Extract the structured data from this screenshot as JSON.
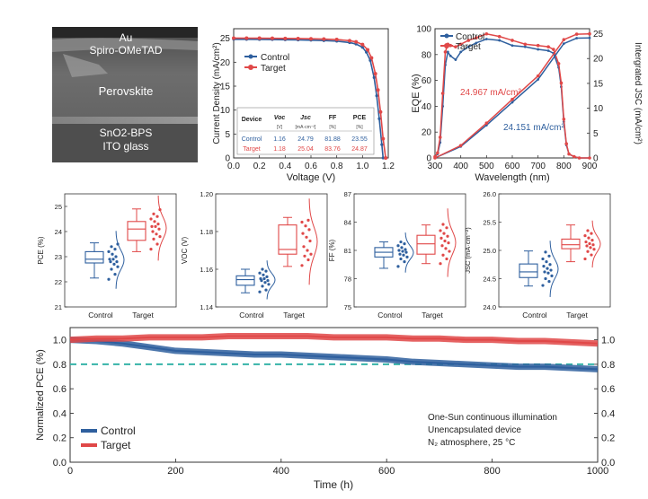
{
  "figure_title": "Perovskite solar cell performance: Control vs Target",
  "colors": {
    "control": "#2e5f9e",
    "target": "#e04848",
    "threshold": "#35b3a8",
    "axis": "#333333",
    "sem_bg": "#3a3a3a"
  },
  "sem_image": {
    "layers": [
      "Au",
      "Spiro-OMeTAD",
      "Perovskite",
      "SnO2-BPS",
      "ITO glass"
    ]
  },
  "chart_data": [
    {
      "id": "jv",
      "type": "line",
      "xlabel": "Voltage (V)",
      "ylabel": "Current Density (mA/cm²)",
      "xlim": [
        0.0,
        1.2
      ],
      "ylim": [
        0,
        27
      ],
      "xticks": [
        "0.0",
        "0.2",
        "0.4",
        "0.6",
        "0.8",
        "1.0",
        "1.2"
      ],
      "yticks": [
        "0",
        "5",
        "10",
        "15",
        "20",
        "25"
      ],
      "legend": [
        "Control",
        "Target"
      ],
      "series": [
        {
          "name": "Control",
          "x": [
            0,
            0.1,
            0.2,
            0.3,
            0.4,
            0.5,
            0.6,
            0.7,
            0.8,
            0.9,
            0.95,
            1.0,
            1.03,
            1.06,
            1.09,
            1.11,
            1.13,
            1.15,
            1.16
          ],
          "y": [
            24.79,
            24.78,
            24.76,
            24.74,
            24.7,
            24.66,
            24.6,
            24.52,
            24.4,
            24.1,
            23.8,
            23.1,
            22.1,
            20.4,
            16.8,
            13.0,
            8.2,
            2.8,
            0
          ]
        },
        {
          "name": "Target",
          "x": [
            0,
            0.1,
            0.2,
            0.3,
            0.4,
            0.5,
            0.6,
            0.7,
            0.8,
            0.9,
            0.95,
            1.0,
            1.04,
            1.07,
            1.1,
            1.12,
            1.14,
            1.16,
            1.18
          ],
          "y": [
            25.04,
            25.03,
            25.02,
            25.0,
            24.97,
            24.94,
            24.9,
            24.84,
            24.74,
            24.5,
            24.25,
            23.7,
            22.6,
            20.9,
            17.6,
            14.2,
            9.6,
            4.0,
            0
          ]
        }
      ],
      "table": {
        "headers": [
          "Device",
          "Voc",
          "Jsc",
          "FF",
          "PCE"
        ],
        "units": [
          "",
          "[V]",
          "[mA·cm⁻²]",
          "[%]",
          "[%]"
        ],
        "rows": [
          [
            "Control",
            "1.16",
            "24.79",
            "81.88",
            "23.55"
          ],
          [
            "Target",
            "1.18",
            "25.04",
            "83.76",
            "24.87"
          ]
        ]
      }
    },
    {
      "id": "eqe",
      "type": "line",
      "xlabel": "Wavelength (nm)",
      "ylabel": "EQE (%)",
      "y2label": "Intergrated JSC (mA/cm²)",
      "xlim": [
        300,
        900
      ],
      "ylim": [
        0,
        100
      ],
      "y2lim": [
        0,
        26
      ],
      "xticks": [
        "300",
        "400",
        "500",
        "600",
        "700",
        "800",
        "900"
      ],
      "yticks": [
        "0",
        "20",
        "40",
        "60",
        "80",
        "100"
      ],
      "y2ticks": [
        "0",
        "5",
        "10",
        "15",
        "20",
        "25"
      ],
      "legend": [
        "Control",
        "Target"
      ],
      "annotations": [
        "24.967 mA/cm²",
        "24.151 mA/cm²"
      ],
      "series": [
        {
          "name": "Control EQE",
          "x": [
            300,
            310,
            320,
            330,
            340,
            350,
            360,
            380,
            400,
            430,
            460,
            500,
            550,
            600,
            650,
            700,
            740,
            760,
            780,
            790,
            800,
            810,
            820,
            840,
            860,
            900
          ],
          "y": [
            1,
            3,
            12,
            40,
            72,
            82,
            79,
            76,
            82,
            86,
            89,
            92,
            91,
            87,
            86,
            84,
            83,
            81,
            70,
            55,
            28,
            10,
            3,
            1,
            0,
            0
          ]
        },
        {
          "name": "Target EQE",
          "x": [
            300,
            310,
            320,
            330,
            340,
            350,
            360,
            380,
            400,
            430,
            460,
            500,
            550,
            600,
            650,
            700,
            740,
            760,
            780,
            790,
            800,
            810,
            820,
            840,
            860,
            900
          ],
          "y": [
            1,
            4,
            16,
            50,
            82,
            88,
            87,
            86,
            88,
            91,
            93,
            96,
            94,
            91,
            88,
            87,
            86,
            84,
            73,
            58,
            30,
            11,
            3,
            1,
            0,
            0
          ]
        },
        {
          "name": "Control Jsc",
          "x": [
            300,
            400,
            500,
            600,
            700,
            800,
            850,
            900
          ],
          "y": [
            0,
            2.3,
            6.6,
            11.2,
            15.8,
            23.0,
            24.1,
            24.15
          ]
        },
        {
          "name": "Target Jsc",
          "x": [
            300,
            400,
            500,
            600,
            700,
            800,
            850,
            900
          ],
          "y": [
            0,
            2.5,
            7.0,
            11.8,
            16.5,
            23.8,
            24.9,
            24.97
          ]
        }
      ]
    },
    {
      "id": "pce_box",
      "type": "box",
      "ylabel": "PCE (%)",
      "ylim": [
        21,
        25.5
      ],
      "yticks": [
        "21",
        "22",
        "23",
        "24",
        "25"
      ],
      "categories": [
        "Control",
        "Target"
      ],
      "series": [
        {
          "name": "Control",
          "whisker_low": 22.15,
          "q1": 22.75,
          "median": 22.9,
          "q3": 23.2,
          "whisker_high": 23.55,
          "points": [
            22.1,
            22.3,
            22.5,
            22.6,
            22.7,
            22.8,
            22.8,
            22.9,
            22.9,
            23.0,
            23.1,
            23.2,
            23.3,
            23.4,
            23.5
          ]
        },
        {
          "name": "Target",
          "whisker_low": 23.2,
          "q1": 23.65,
          "median": 24.1,
          "q3": 24.4,
          "whisker_high": 24.9,
          "points": [
            23.3,
            23.5,
            23.7,
            23.8,
            23.9,
            24.0,
            24.1,
            24.2,
            24.2,
            24.3,
            24.4,
            24.5,
            24.6,
            24.7,
            24.87
          ]
        }
      ]
    },
    {
      "id": "voc_box",
      "type": "box",
      "ylabel": "VOC (V)",
      "ylim": [
        1.14,
        1.2
      ],
      "yticks": [
        "1.14",
        "1.16",
        "1.18",
        "1.20"
      ],
      "categories": [
        "Control",
        "Target"
      ],
      "series": [
        {
          "name": "Control",
          "whisker_low": 1.1475,
          "q1": 1.1515,
          "median": 1.1545,
          "q3": 1.1565,
          "whisker_high": 1.16,
          "points": [
            1.148,
            1.149,
            1.151,
            1.152,
            1.153,
            1.154,
            1.154,
            1.155,
            1.155,
            1.156,
            1.157,
            1.158,
            1.159,
            1.16
          ]
        },
        {
          "name": "Target",
          "whisker_low": 1.1615,
          "q1": 1.168,
          "median": 1.1705,
          "q3": 1.1835,
          "whisker_high": 1.1875,
          "points": [
            1.162,
            1.165,
            1.167,
            1.168,
            1.17,
            1.172,
            1.175,
            1.177,
            1.179,
            1.181,
            1.183,
            1.185,
            1.186
          ]
        }
      ]
    },
    {
      "id": "ff_box",
      "type": "box",
      "ylabel": "FF (%)",
      "ylim": [
        75,
        87
      ],
      "yticks": [
        "75",
        "78",
        "81",
        "84",
        "87"
      ],
      "categories": [
        "Control",
        "Target"
      ],
      "series": [
        {
          "name": "Control",
          "whisker_low": 79.1,
          "q1": 80.3,
          "median": 80.8,
          "q3": 81.3,
          "whisker_high": 81.9,
          "points": [
            79.3,
            79.8,
            80.1,
            80.3,
            80.5,
            80.6,
            80.8,
            80.9,
            81.0,
            81.1,
            81.3,
            81.5,
            81.7,
            81.9
          ]
        },
        {
          "name": "Target",
          "whisker_low": 79.6,
          "q1": 80.6,
          "median": 81.7,
          "q3": 82.6,
          "whisker_high": 83.7,
          "points": [
            79.6,
            80.1,
            80.5,
            80.9,
            81.2,
            81.5,
            81.8,
            82.0,
            82.3,
            82.5,
            82.8,
            83.1,
            83.4,
            83.76
          ]
        }
      ]
    },
    {
      "id": "jsc_box",
      "type": "box",
      "ylabel": "JSC (mA·cm⁻²)",
      "ylim": [
        24.0,
        26.0
      ],
      "yticks": [
        "24.0",
        "24.5",
        "25.0",
        "25.5",
        "26.0"
      ],
      "categories": [
        "Control",
        "Target"
      ],
      "series": [
        {
          "name": "Control",
          "whisker_low": 24.37,
          "q1": 24.52,
          "median": 24.62,
          "q3": 24.76,
          "whisker_high": 24.99,
          "points": [
            24.38,
            24.45,
            24.5,
            24.55,
            24.6,
            24.62,
            24.65,
            24.68,
            24.72,
            24.75,
            24.8,
            24.85,
            24.9,
            24.97
          ]
        },
        {
          "name": "Target",
          "whisker_low": 24.8,
          "q1": 25.03,
          "median": 25.1,
          "q3": 25.2,
          "whisker_high": 25.45,
          "points": [
            24.85,
            24.92,
            24.98,
            25.02,
            25.05,
            25.08,
            25.1,
            25.12,
            25.15,
            25.18,
            25.22,
            25.26,
            25.3,
            25.35
          ]
        }
      ]
    },
    {
      "id": "stability",
      "type": "line",
      "xlabel": "Time (h)",
      "ylabel": "Normalized PCE (%)",
      "xlim": [
        0,
        1000
      ],
      "ylim": [
        0.0,
        1.1
      ],
      "xticks": [
        "0",
        "200",
        "400",
        "600",
        "800",
        "1000"
      ],
      "yticks": [
        "0.0",
        "0.2",
        "0.4",
        "0.6",
        "0.8",
        "1.0"
      ],
      "legend": [
        "Control",
        "Target"
      ],
      "threshold": 0.8,
      "annotations": [
        "One-Sun continuous illumination",
        "Unencapsulated device",
        "N₂ atmosphere, 25 °C"
      ],
      "series": [
        {
          "name": "Control",
          "x": [
            0,
            50,
            100,
            150,
            200,
            250,
            300,
            350,
            400,
            450,
            500,
            550,
            600,
            650,
            700,
            750,
            800,
            850,
            900,
            950,
            1000
          ],
          "y": [
            1.0,
            0.99,
            0.97,
            0.94,
            0.91,
            0.9,
            0.89,
            0.88,
            0.88,
            0.87,
            0.86,
            0.85,
            0.84,
            0.82,
            0.81,
            0.8,
            0.79,
            0.78,
            0.78,
            0.77,
            0.76
          ]
        },
        {
          "name": "Target",
          "x": [
            0,
            50,
            100,
            150,
            200,
            250,
            300,
            350,
            400,
            450,
            500,
            550,
            600,
            650,
            700,
            750,
            800,
            850,
            900,
            950,
            1000
          ],
          "y": [
            1.0,
            1.01,
            1.01,
            1.02,
            1.02,
            1.02,
            1.03,
            1.03,
            1.03,
            1.03,
            1.02,
            1.02,
            1.02,
            1.01,
            1.01,
            1.0,
            1.0,
            0.99,
            0.99,
            0.98,
            0.97
          ]
        }
      ]
    }
  ]
}
